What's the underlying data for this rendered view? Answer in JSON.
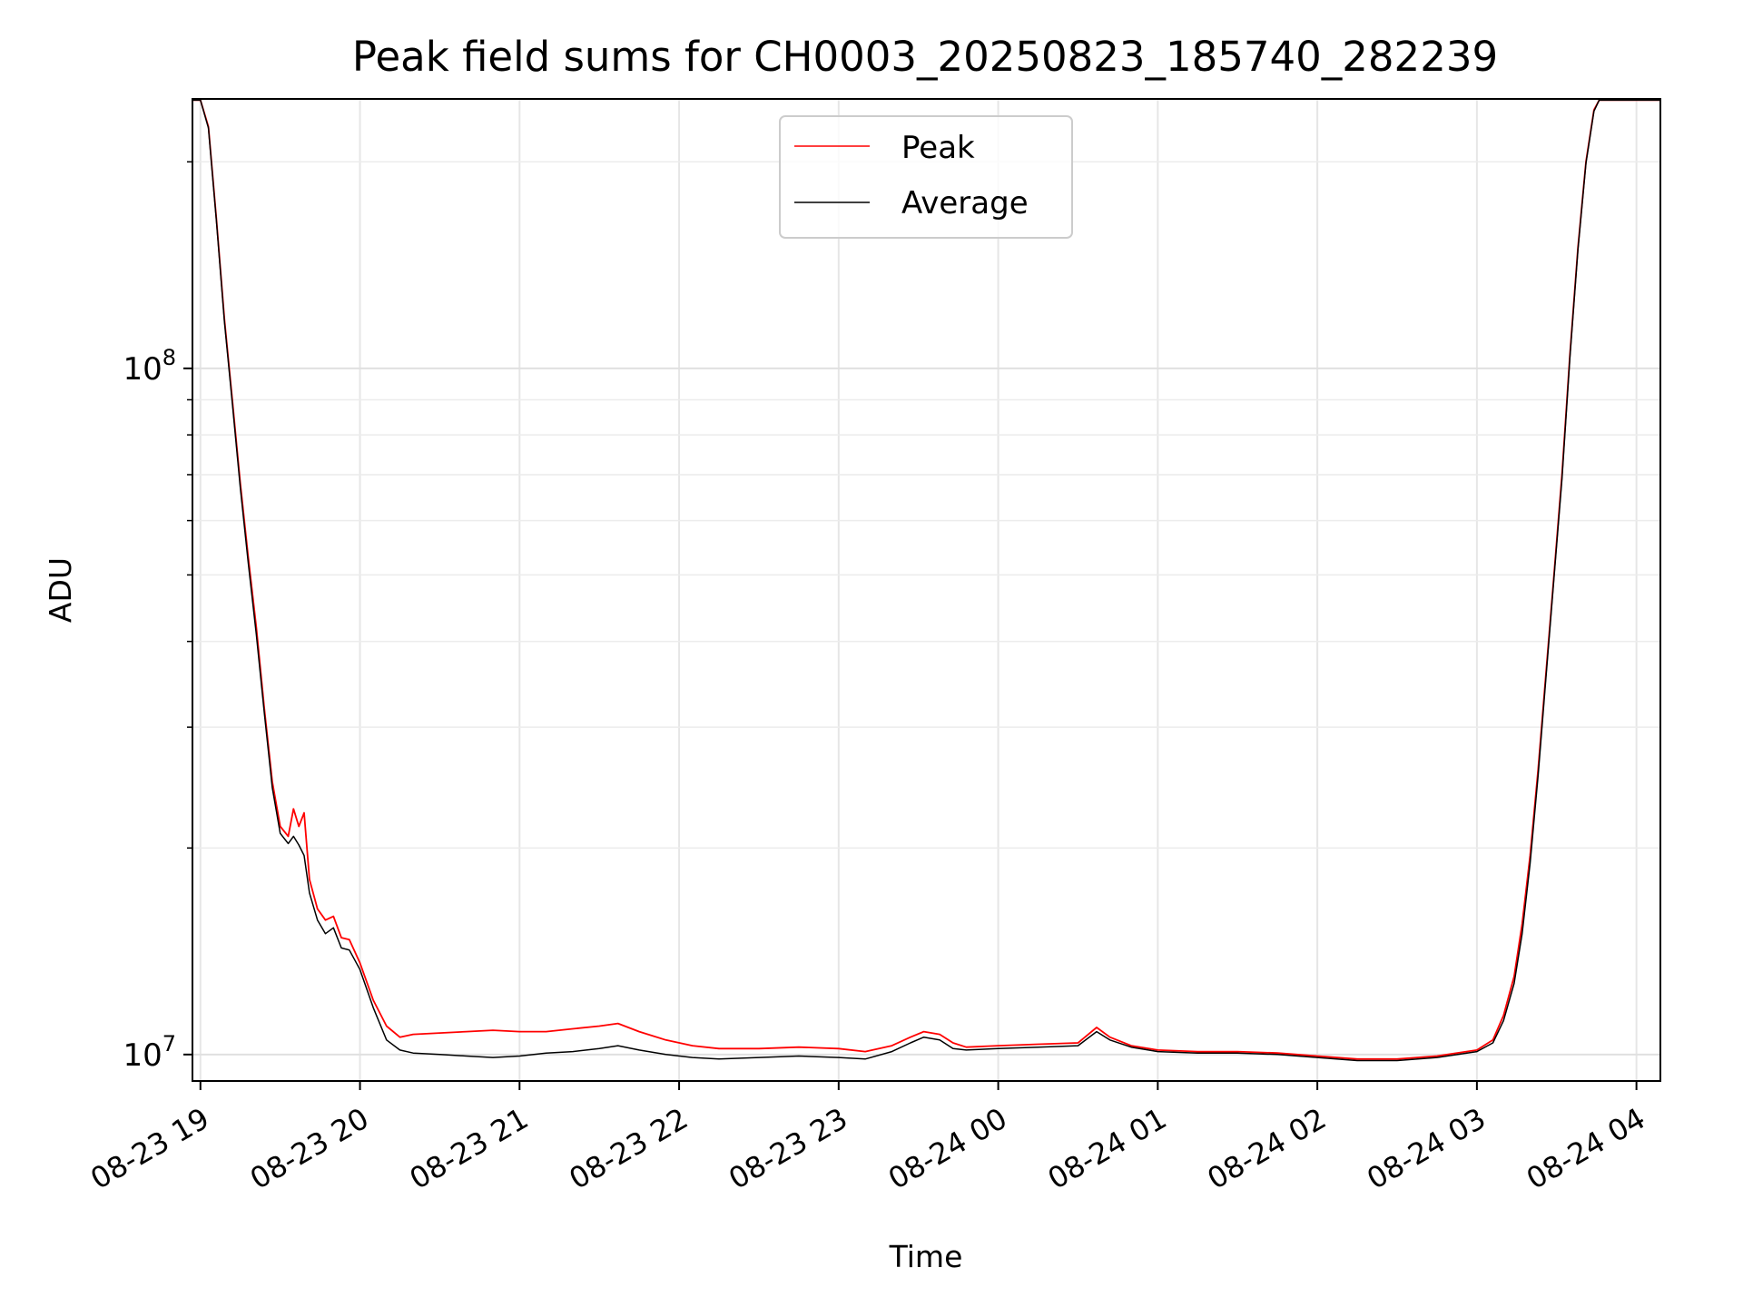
{
  "chart_data": {
    "type": "line",
    "title": "Peak field sums for CH0003_20250823_185740_282239",
    "xlabel": "Time",
    "ylabel": "ADU",
    "y_scale": "log",
    "ylim": [
      9150000,
      247000000
    ],
    "xlim": [
      "2025-08-23T18:57",
      "2025-08-24T04:09"
    ],
    "grid": true,
    "legend_position": "upper center",
    "x_ticks": [
      {
        "t": "2025-08-23T19:00",
        "label": "08-23 19"
      },
      {
        "t": "2025-08-23T20:00",
        "label": "08-23 20"
      },
      {
        "t": "2025-08-23T21:00",
        "label": "08-23 21"
      },
      {
        "t": "2025-08-23T22:00",
        "label": "08-23 22"
      },
      {
        "t": "2025-08-23T23:00",
        "label": "08-23 23"
      },
      {
        "t": "2025-08-24T00:00",
        "label": "08-24 00"
      },
      {
        "t": "2025-08-24T01:00",
        "label": "08-24 01"
      },
      {
        "t": "2025-08-24T02:00",
        "label": "08-24 02"
      },
      {
        "t": "2025-08-24T03:00",
        "label": "08-24 03"
      },
      {
        "t": "2025-08-24T04:00",
        "label": "08-24 04"
      }
    ],
    "y_ticks": [
      {
        "value": 10000000,
        "mantissa": "10",
        "exponent": "7"
      },
      {
        "value": 100000000,
        "mantissa": "10",
        "exponent": "8"
      }
    ],
    "series": [
      {
        "name": "Peak",
        "color": "#ff0000",
        "points": [
          [
            "2025-08-23T18:57",
            246000000
          ],
          [
            "2025-08-23T19:00",
            246000000
          ],
          [
            "2025-08-23T19:03",
            225000000
          ],
          [
            "2025-08-23T19:06",
            165000000
          ],
          [
            "2025-08-23T19:09",
            118000000
          ],
          [
            "2025-08-23T19:12",
            90000000
          ],
          [
            "2025-08-23T19:15",
            68000000
          ],
          [
            "2025-08-23T19:18",
            53000000
          ],
          [
            "2025-08-23T19:21",
            42000000
          ],
          [
            "2025-08-23T19:24",
            32000000
          ],
          [
            "2025-08-23T19:27",
            25000000
          ],
          [
            "2025-08-23T19:30",
            21500000
          ],
          [
            "2025-08-23T19:33",
            20800000
          ],
          [
            "2025-08-23T19:35",
            22800000
          ],
          [
            "2025-08-23T19:37",
            21500000
          ],
          [
            "2025-08-23T19:39",
            22500000
          ],
          [
            "2025-08-23T19:41",
            18000000
          ],
          [
            "2025-08-23T19:44",
            16300000
          ],
          [
            "2025-08-23T19:47",
            15700000
          ],
          [
            "2025-08-23T19:50",
            15900000
          ],
          [
            "2025-08-23T19:53",
            14800000
          ],
          [
            "2025-08-23T19:56",
            14700000
          ],
          [
            "2025-08-23T20:00",
            13600000
          ],
          [
            "2025-08-23T20:05",
            12000000
          ],
          [
            "2025-08-23T20:10",
            11000000
          ],
          [
            "2025-08-23T20:15",
            10600000
          ],
          [
            "2025-08-23T20:20",
            10700000
          ],
          [
            "2025-08-23T20:30",
            10750000
          ],
          [
            "2025-08-23T20:40",
            10800000
          ],
          [
            "2025-08-23T20:50",
            10850000
          ],
          [
            "2025-08-23T21:00",
            10800000
          ],
          [
            "2025-08-23T21:10",
            10800000
          ],
          [
            "2025-08-23T21:20",
            10900000
          ],
          [
            "2025-08-23T21:30",
            11000000
          ],
          [
            "2025-08-23T21:37",
            11100000
          ],
          [
            "2025-08-23T21:45",
            10800000
          ],
          [
            "2025-08-23T21:55",
            10500000
          ],
          [
            "2025-08-23T22:05",
            10300000
          ],
          [
            "2025-08-23T22:15",
            10200000
          ],
          [
            "2025-08-23T22:30",
            10200000
          ],
          [
            "2025-08-23T22:45",
            10250000
          ],
          [
            "2025-08-23T23:00",
            10200000
          ],
          [
            "2025-08-23T23:10",
            10100000
          ],
          [
            "2025-08-23T23:20",
            10300000
          ],
          [
            "2025-08-23T23:27",
            10600000
          ],
          [
            "2025-08-23T23:32",
            10800000
          ],
          [
            "2025-08-23T23:38",
            10700000
          ],
          [
            "2025-08-23T23:43",
            10400000
          ],
          [
            "2025-08-23T23:48",
            10250000
          ],
          [
            "2025-08-24T00:00",
            10300000
          ],
          [
            "2025-08-24T00:15",
            10350000
          ],
          [
            "2025-08-24T00:30",
            10400000
          ],
          [
            "2025-08-24T00:37",
            10950000
          ],
          [
            "2025-08-24T00:42",
            10600000
          ],
          [
            "2025-08-24T00:50",
            10300000
          ],
          [
            "2025-08-24T01:00",
            10150000
          ],
          [
            "2025-08-24T01:15",
            10100000
          ],
          [
            "2025-08-24T01:30",
            10100000
          ],
          [
            "2025-08-24T01:45",
            10050000
          ],
          [
            "2025-08-24T02:00",
            9950000
          ],
          [
            "2025-08-24T02:15",
            9850000
          ],
          [
            "2025-08-24T02:30",
            9850000
          ],
          [
            "2025-08-24T02:45",
            9950000
          ],
          [
            "2025-08-24T03:00",
            10150000
          ],
          [
            "2025-08-24T03:06",
            10500000
          ],
          [
            "2025-08-24T03:10",
            11400000
          ],
          [
            "2025-08-24T03:14",
            13000000
          ],
          [
            "2025-08-24T03:17",
            15500000
          ],
          [
            "2025-08-24T03:20",
            19500000
          ],
          [
            "2025-08-24T03:23",
            26000000
          ],
          [
            "2025-08-24T03:26",
            36000000
          ],
          [
            "2025-08-24T03:29",
            50000000
          ],
          [
            "2025-08-24T03:32",
            70000000
          ],
          [
            "2025-08-24T03:35",
            105000000
          ],
          [
            "2025-08-24T03:38",
            150000000
          ],
          [
            "2025-08-24T03:41",
            200000000
          ],
          [
            "2025-08-24T03:44",
            238000000
          ],
          [
            "2025-08-24T03:46",
            246000000
          ],
          [
            "2025-08-24T04:09",
            246000000
          ]
        ]
      },
      {
        "name": "Average",
        "color": "#000000",
        "points": [
          [
            "2025-08-23T18:57",
            246000000
          ],
          [
            "2025-08-23T19:00",
            246000000
          ],
          [
            "2025-08-23T19:03",
            224000000
          ],
          [
            "2025-08-23T19:06",
            164000000
          ],
          [
            "2025-08-23T19:09",
            117000000
          ],
          [
            "2025-08-23T19:12",
            89000000
          ],
          [
            "2025-08-23T19:15",
            67000000
          ],
          [
            "2025-08-23T19:18",
            52000000
          ],
          [
            "2025-08-23T19:21",
            41000000
          ],
          [
            "2025-08-23T19:24",
            31500000
          ],
          [
            "2025-08-23T19:27",
            24500000
          ],
          [
            "2025-08-23T19:30",
            21000000
          ],
          [
            "2025-08-23T19:33",
            20300000
          ],
          [
            "2025-08-23T19:35",
            20800000
          ],
          [
            "2025-08-23T19:37",
            20200000
          ],
          [
            "2025-08-23T19:39",
            19500000
          ],
          [
            "2025-08-23T19:41",
            17200000
          ],
          [
            "2025-08-23T19:44",
            15700000
          ],
          [
            "2025-08-23T19:47",
            15000000
          ],
          [
            "2025-08-23T19:50",
            15300000
          ],
          [
            "2025-08-23T19:53",
            14300000
          ],
          [
            "2025-08-23T19:56",
            14200000
          ],
          [
            "2025-08-23T20:00",
            13300000
          ],
          [
            "2025-08-23T20:05",
            11700000
          ],
          [
            "2025-08-23T20:10",
            10500000
          ],
          [
            "2025-08-23T20:15",
            10150000
          ],
          [
            "2025-08-23T20:20",
            10050000
          ],
          [
            "2025-08-23T20:30",
            10000000
          ],
          [
            "2025-08-23T20:40",
            9950000
          ],
          [
            "2025-08-23T20:50",
            9900000
          ],
          [
            "2025-08-23T21:00",
            9950000
          ],
          [
            "2025-08-23T21:10",
            10050000
          ],
          [
            "2025-08-23T21:20",
            10100000
          ],
          [
            "2025-08-23T21:30",
            10200000
          ],
          [
            "2025-08-23T21:37",
            10300000
          ],
          [
            "2025-08-23T21:45",
            10150000
          ],
          [
            "2025-08-23T21:55",
            10000000
          ],
          [
            "2025-08-23T22:05",
            9900000
          ],
          [
            "2025-08-23T22:15",
            9850000
          ],
          [
            "2025-08-23T22:30",
            9900000
          ],
          [
            "2025-08-23T22:45",
            9950000
          ],
          [
            "2025-08-23T23:00",
            9900000
          ],
          [
            "2025-08-23T23:10",
            9850000
          ],
          [
            "2025-08-23T23:20",
            10100000
          ],
          [
            "2025-08-23T23:27",
            10400000
          ],
          [
            "2025-08-23T23:32",
            10600000
          ],
          [
            "2025-08-23T23:38",
            10500000
          ],
          [
            "2025-08-23T23:43",
            10200000
          ],
          [
            "2025-08-23T23:48",
            10150000
          ],
          [
            "2025-08-24T00:00",
            10200000
          ],
          [
            "2025-08-24T00:15",
            10250000
          ],
          [
            "2025-08-24T00:30",
            10300000
          ],
          [
            "2025-08-24T00:37",
            10800000
          ],
          [
            "2025-08-24T00:42",
            10500000
          ],
          [
            "2025-08-24T00:50",
            10250000
          ],
          [
            "2025-08-24T01:00",
            10100000
          ],
          [
            "2025-08-24T01:15",
            10050000
          ],
          [
            "2025-08-24T01:30",
            10050000
          ],
          [
            "2025-08-24T01:45",
            10000000
          ],
          [
            "2025-08-24T02:00",
            9900000
          ],
          [
            "2025-08-24T02:15",
            9800000
          ],
          [
            "2025-08-24T02:30",
            9800000
          ],
          [
            "2025-08-24T02:45",
            9900000
          ],
          [
            "2025-08-24T03:00",
            10100000
          ],
          [
            "2025-08-24T03:06",
            10400000
          ],
          [
            "2025-08-24T03:10",
            11200000
          ],
          [
            "2025-08-24T03:14",
            12700000
          ],
          [
            "2025-08-24T03:17",
            15000000
          ],
          [
            "2025-08-24T03:20",
            19000000
          ],
          [
            "2025-08-24T03:23",
            25500000
          ],
          [
            "2025-08-24T03:26",
            35500000
          ],
          [
            "2025-08-24T03:29",
            49500000
          ],
          [
            "2025-08-24T03:32",
            69000000
          ],
          [
            "2025-08-24T03:35",
            104000000
          ],
          [
            "2025-08-24T03:38",
            149000000
          ],
          [
            "2025-08-24T03:41",
            199000000
          ],
          [
            "2025-08-24T03:44",
            237000000
          ],
          [
            "2025-08-24T03:46",
            246000000
          ],
          [
            "2025-08-24T04:09",
            246000000
          ]
        ]
      }
    ]
  }
}
